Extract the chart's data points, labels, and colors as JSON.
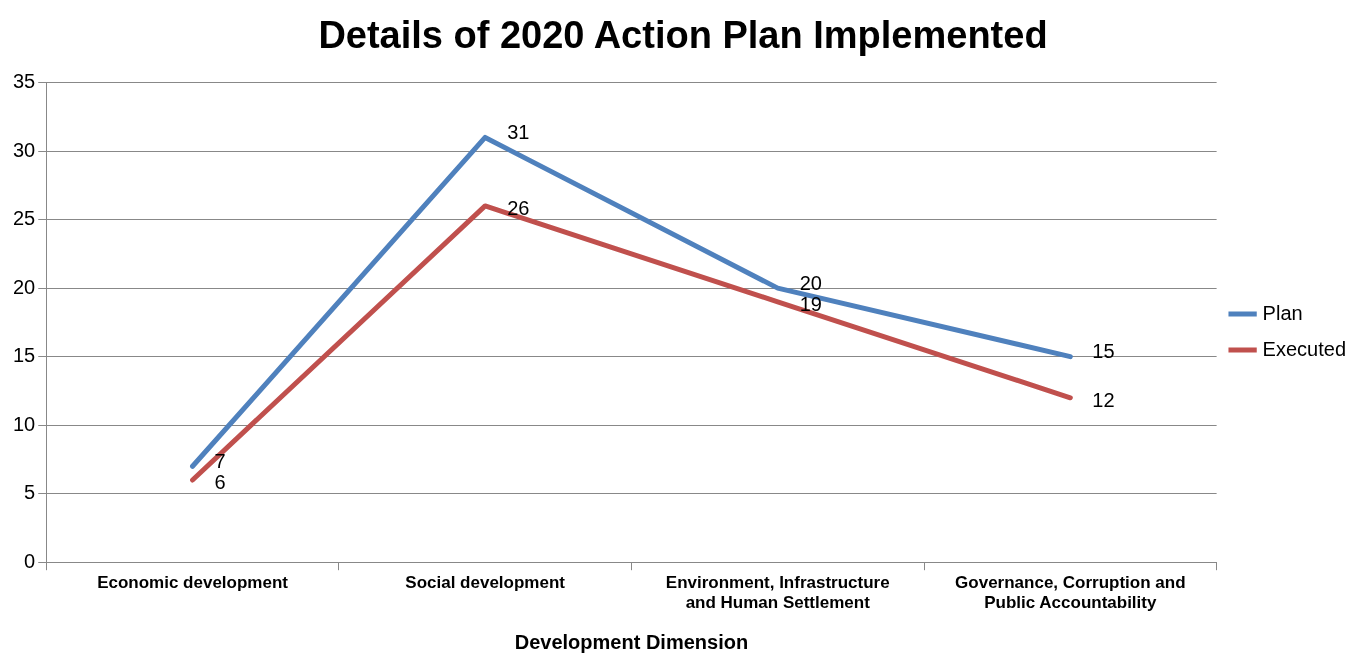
{
  "chart_data": {
    "type": "line",
    "title": "Details of 2020 Action Plan Implemented",
    "xlabel": "Development Dimension",
    "categories": [
      "Economic development",
      "Social development",
      "Environment, Infrastructure and Human Settlement",
      "Governance, Corruption and Public Accountability"
    ],
    "series": [
      {
        "name": "Plan",
        "color": "#4f81bd",
        "values": [
          7,
          31,
          20,
          15
        ]
      },
      {
        "name": "Executed",
        "color": "#c0504d",
        "values": [
          6,
          26,
          19,
          12
        ]
      }
    ],
    "ylim": [
      0,
      35
    ],
    "yticks": [
      0,
      5,
      10,
      15,
      20,
      25,
      30,
      35
    ],
    "grid": "y",
    "legend": "right",
    "marker": "none",
    "line_style": "solid",
    "data_labels": true
  }
}
